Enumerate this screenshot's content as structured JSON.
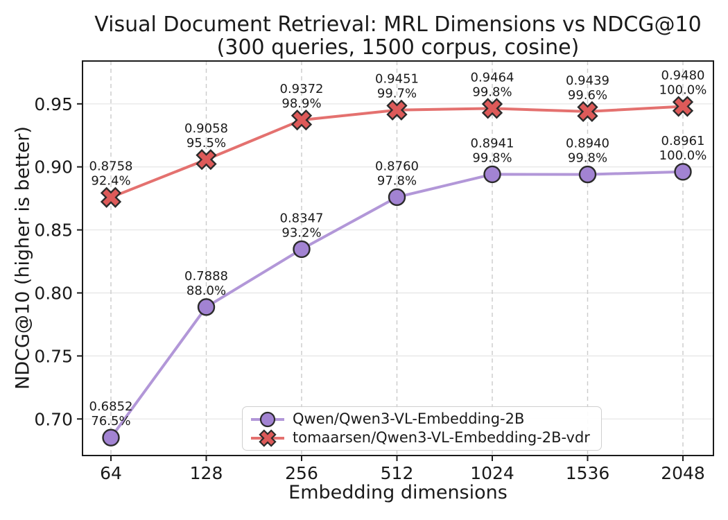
{
  "chart_data": {
    "type": "line",
    "title": "Visual Document Retrieval: MRL Dimensions vs NDCG@10",
    "subtitle": "(300 queries, 1500 corpus, cosine)",
    "xlabel": "Embedding dimensions",
    "ylabel": "NDCG@10 (higher is better)",
    "x_values": [
      64,
      128,
      256,
      512,
      1024,
      1536,
      2048
    ],
    "x_tick_labels": [
      "64",
      "128",
      "256",
      "512",
      "1024",
      "1536",
      "2048"
    ],
    "y_ticks": [
      0.7,
      0.75,
      0.8,
      0.85,
      0.9,
      0.95
    ],
    "y_tick_labels": [
      "0.70",
      "0.75",
      "0.80",
      "0.85",
      "0.90",
      "0.95"
    ],
    "ylim": [
      0.671,
      0.984
    ],
    "grid": {
      "horizontal": "solid",
      "vertical": "dashed"
    },
    "legend_position": "lower center inside",
    "colors": {
      "purple_line": "#b297d8",
      "purple_marker": "#a283d2",
      "red_line": "#e4716f",
      "red_marker": "#dd5a59",
      "marker_edge": "#2b2b2b",
      "grid_h": "#e8e8e8",
      "grid_v": "#cbcbcb",
      "spine": "#1a1a1a"
    },
    "series": [
      {
        "name": "Qwen/Qwen3-VL-Embedding-2B",
        "marker": "circle",
        "values": [
          0.6852,
          0.7888,
          0.8347,
          0.876,
          0.8941,
          0.894,
          0.8961
        ],
        "value_labels": [
          "0.6852",
          "0.7888",
          "0.8347",
          "0.8760",
          "0.8941",
          "0.8940",
          "0.8961"
        ],
        "pct_labels": [
          "76.5%",
          "88.0%",
          "93.2%",
          "97.8%",
          "99.8%",
          "99.8%",
          "100.0%"
        ]
      },
      {
        "name": "tomaarsen/Qwen3-VL-Embedding-2B-vdr",
        "marker": "x",
        "values": [
          0.8758,
          0.9058,
          0.9372,
          0.9451,
          0.9464,
          0.9439,
          0.948
        ],
        "value_labels": [
          "0.8758",
          "0.9058",
          "0.9372",
          "0.9451",
          "0.9464",
          "0.9439",
          "0.9480"
        ],
        "pct_labels": [
          "92.4%",
          "95.5%",
          "98.9%",
          "99.7%",
          "99.8%",
          "99.6%",
          "100.0%"
        ]
      }
    ]
  }
}
